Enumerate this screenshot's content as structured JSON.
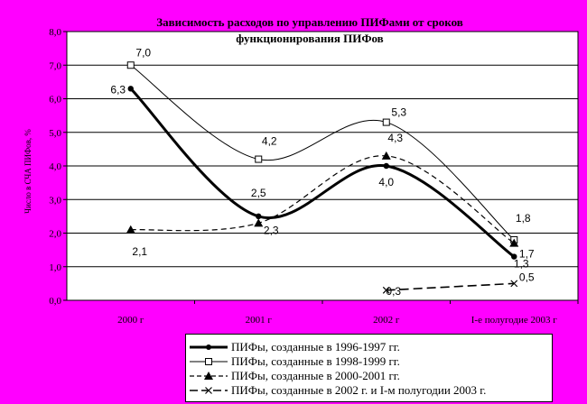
{
  "chart_data": {
    "type": "line",
    "title_line1": "Зависимость расходов по управлению ПИФами от сроков",
    "title_line2": "функционирования ПИФов",
    "ylabel": "Число в СЧА ПИФов, %",
    "xlabel": "",
    "ylim": [
      0,
      8
    ],
    "y_ticks": [
      "0,0",
      "1,0",
      "2,0",
      "3,0",
      "4,0",
      "5,0",
      "6,0",
      "7,0",
      "8,0"
    ],
    "categories": [
      "2000 г",
      "2001 г",
      "2002 г",
      "I-е полугодие 2003 г"
    ],
    "grid": "horizontal",
    "legend_position": "bottom",
    "series": [
      {
        "name": "ПИФы, созданные в 1996-1997 гг.",
        "values": [
          6.3,
          2.5,
          4.0,
          1.3
        ],
        "labels": [
          "6,3",
          "2,5",
          "4,0",
          "1,3"
        ],
        "marker": "circle",
        "style": "bold"
      },
      {
        "name": "ПИФы, созданные в 1998-1999 гг.",
        "values": [
          7.0,
          4.2,
          5.3,
          1.8
        ],
        "labels": [
          "7,0",
          "4,2",
          "5,3",
          "1,8"
        ],
        "marker": "square",
        "style": "thin"
      },
      {
        "name": "ПИФы, созданные в 2000-2001 гг.",
        "values": [
          2.1,
          2.3,
          4.3,
          1.7
        ],
        "labels": [
          "2,1",
          "2,3",
          "4,3",
          "1,7"
        ],
        "marker": "triangle",
        "style": "dashed"
      },
      {
        "name": "ПИФы, созданные в 2002 г. и I-м полугодии 2003 г.",
        "values": [
          null,
          null,
          0.3,
          0.5
        ],
        "labels": [
          "",
          "",
          "0,3",
          "0,5"
        ],
        "marker": "x",
        "style": "longdash"
      }
    ],
    "colors": {
      "background": "#ff00ff",
      "plot_area": "#ffffff",
      "line": "#000000"
    }
  }
}
